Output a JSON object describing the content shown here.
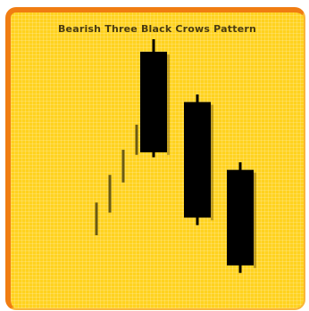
{
  "chart_data": {
    "type": "candlestick",
    "title": "Bearish Three Black Crows Pattern",
    "footnote": "",
    "xlabel": "",
    "ylabel": "",
    "grid": true,
    "ylim": [
      0,
      100
    ],
    "uptrend_ticks": [
      {
        "low": 22,
        "high": 35
      },
      {
        "low": 31,
        "high": 46
      },
      {
        "low": 43,
        "high": 56
      },
      {
        "low": 54,
        "high": 66
      }
    ],
    "candles": [
      {
        "color": "black",
        "open": 95,
        "close": 55,
        "high": 100,
        "low": 53
      },
      {
        "color": "black",
        "open": 75,
        "close": 29,
        "high": 78,
        "low": 26
      },
      {
        "color": "black",
        "open": 48,
        "close": 10,
        "high": 51,
        "low": 7
      }
    ]
  }
}
